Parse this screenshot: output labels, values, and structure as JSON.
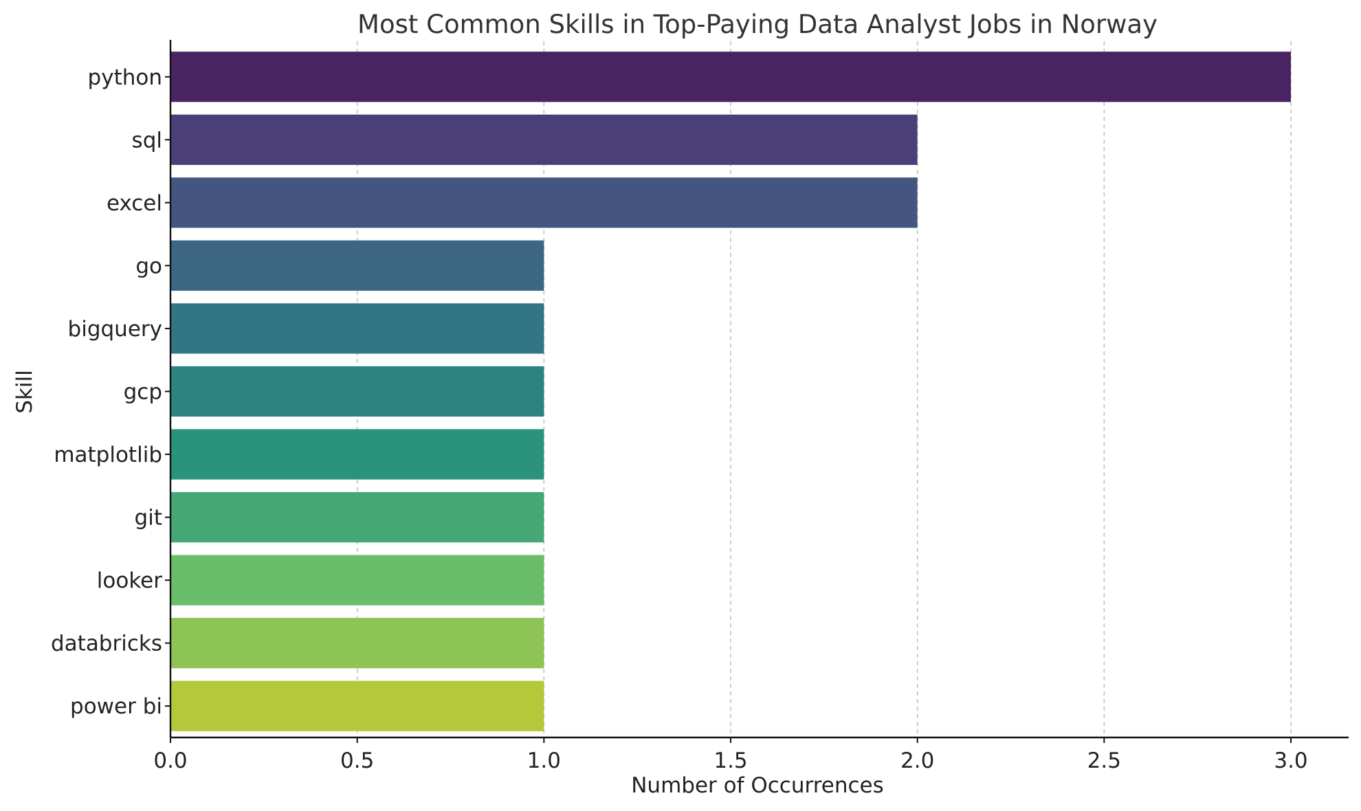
{
  "chart_data": {
    "type": "bar",
    "orientation": "horizontal",
    "title": "Most Common Skills in Top-Paying Data Analyst Jobs in Norway",
    "xlabel": "Number of Occurrences",
    "ylabel": "Skill",
    "categories": [
      "python",
      "sql",
      "excel",
      "go",
      "bigquery",
      "gcp",
      "matplotlib",
      "git",
      "looker",
      "databricks",
      "power bi"
    ],
    "values": [
      3,
      2,
      2,
      1,
      1,
      1,
      1,
      1,
      1,
      1,
      1
    ],
    "colors": [
      "#482462",
      "#4b3f77",
      "#445680",
      "#3b6782",
      "#327583",
      "#2b8481",
      "#2c937b",
      "#45a773",
      "#6abd69",
      "#8ec356",
      "#b5c83a"
    ],
    "xlim": [
      0,
      3.15
    ],
    "xticks": [
      0.0,
      0.5,
      1.0,
      1.5,
      2.0,
      2.5,
      3.0
    ],
    "xtick_labels": [
      "0.0",
      "0.5",
      "1.0",
      "1.5",
      "2.0",
      "2.5",
      "3.0"
    ],
    "grid": "x-axis dashed",
    "legend": "none"
  }
}
